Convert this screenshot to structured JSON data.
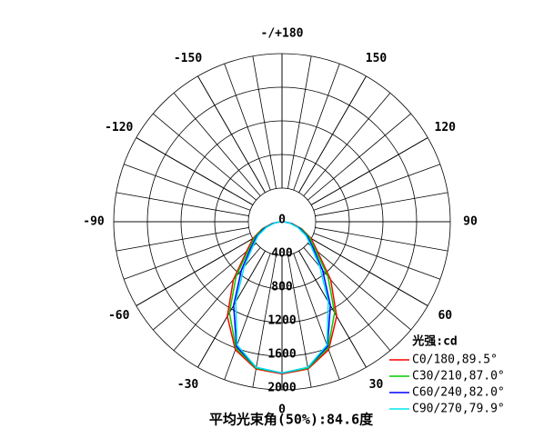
{
  "chart_data": {
    "type": "polar",
    "x": [
      -90,
      -80,
      -70,
      -60,
      -50,
      -40,
      -30,
      -20,
      -10,
      0,
      10,
      20,
      30,
      40,
      50,
      60,
      70,
      80,
      90
    ],
    "series": [
      {
        "name": "C0/180,89.5°",
        "color": "#ff0000",
        "values": [
          20,
          120,
          250,
          400,
          550,
          900,
          1300,
          1620,
          1780,
          1810,
          1780,
          1620,
          1300,
          900,
          550,
          400,
          250,
          120,
          20
        ]
      },
      {
        "name": "C30/210,87.0°",
        "color": "#00cc00",
        "values": [
          20,
          110,
          240,
          380,
          520,
          850,
          1250,
          1600,
          1770,
          1800,
          1770,
          1600,
          1250,
          850,
          520,
          380,
          240,
          110,
          20
        ]
      },
      {
        "name": "C60/240,82.0°",
        "color": "#0000ff",
        "values": [
          20,
          100,
          220,
          350,
          480,
          750,
          1150,
          1580,
          1760,
          1800,
          1760,
          1580,
          1150,
          750,
          480,
          350,
          220,
          100,
          20
        ]
      },
      {
        "name": "C90/270,79.9°",
        "color": "#00e5ee",
        "values": [
          20,
          90,
          200,
          330,
          450,
          700,
          1100,
          1560,
          1760,
          1800,
          1760,
          1560,
          1100,
          700,
          450,
          330,
          200,
          90,
          20
        ]
      }
    ],
    "xticks": [
      -150,
      -120,
      -90,
      -60,
      -30,
      0,
      30,
      60,
      90,
      120,
      150,
      {
        "value": 180,
        "label": "-/+180"
      }
    ],
    "ylim": [
      0,
      2000
    ],
    "yticks": [
      0,
      400,
      800,
      1200,
      1600,
      2000
    ],
    "legend_title": "光强:cd",
    "annotation": "平均光束角(50%):84.6度"
  }
}
